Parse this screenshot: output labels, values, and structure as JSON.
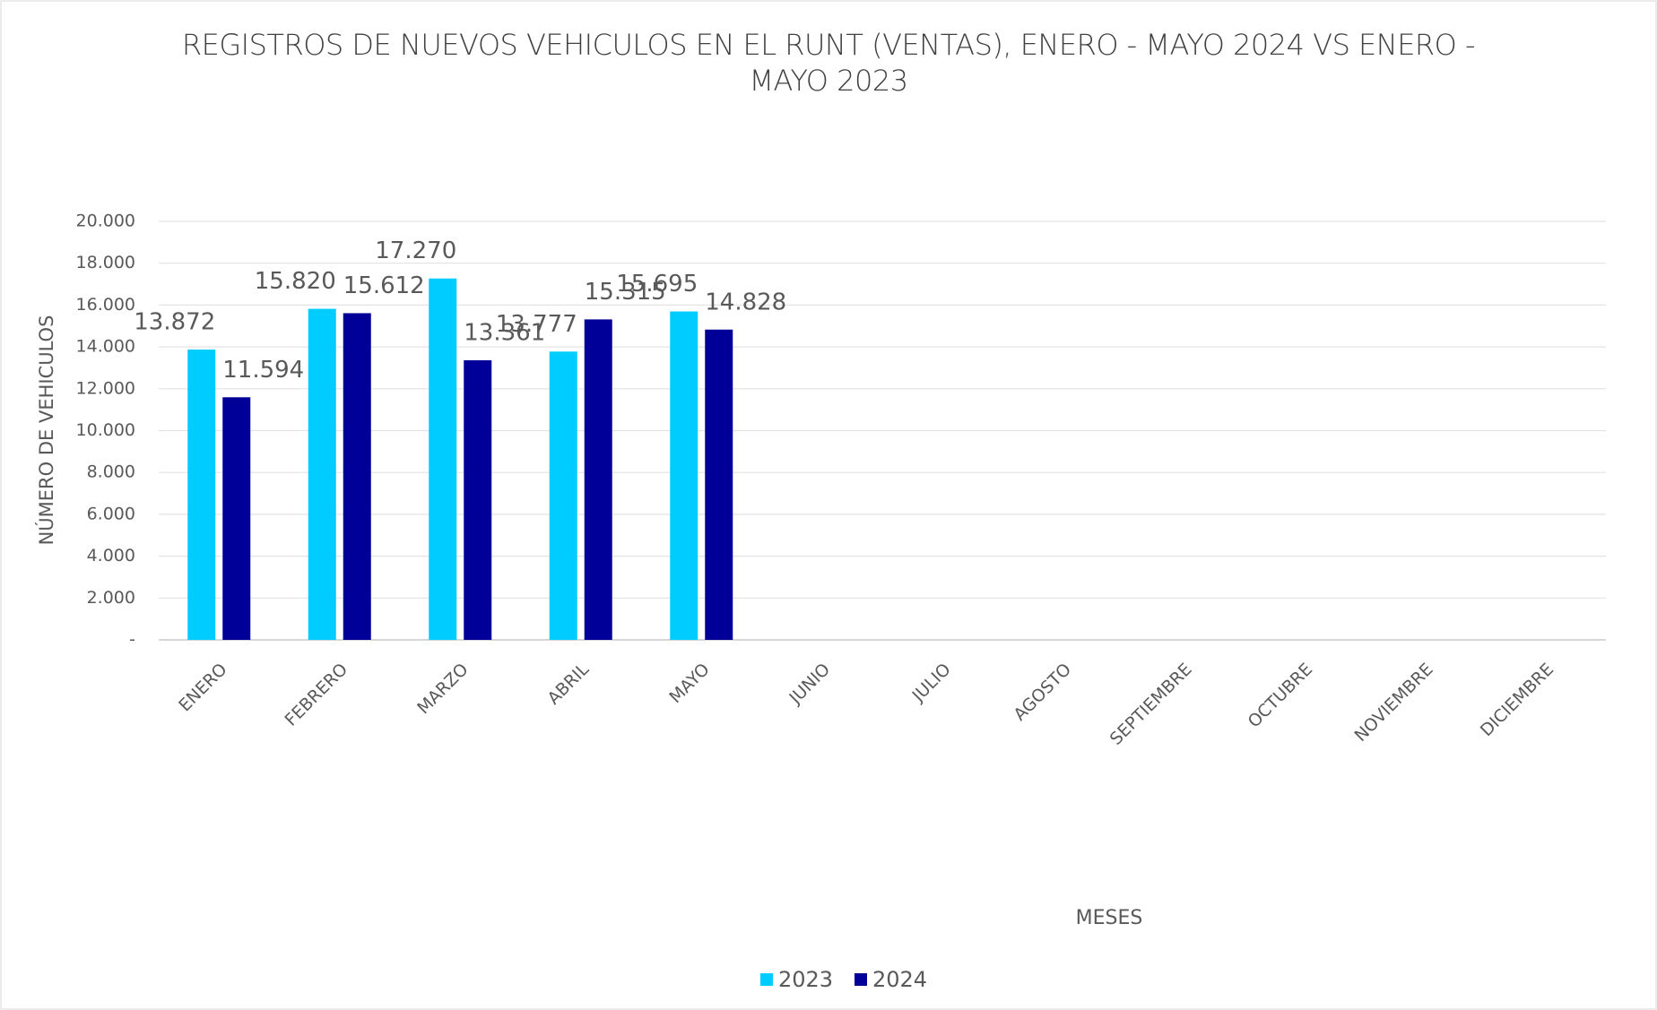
{
  "chart_data": {
    "type": "bar",
    "title": "REGISTROS DE NUEVOS VEHICULOS EN EL RUNT (VENTAS), ENERO - MAYO  2024 VS ENERO - MAYO 2023",
    "y_label": "NÚMERO DE VEHICULOS",
    "x_label": "MESES",
    "categories": [
      "ENERO",
      "FEBRERO",
      "MARZO",
      "ABRIL",
      "MAYO",
      "JUNIO",
      "JULIO",
      "AGOSTO",
      "SEPTIEMBRE",
      "OCTUBRE",
      "NOVIEMBRE",
      "DICIEMBRE"
    ],
    "series": [
      {
        "name": "2023",
        "color": "#00ccff",
        "values": [
          13872,
          15820,
          17270,
          13777,
          15695,
          null,
          null,
          null,
          null,
          null,
          null,
          null
        ],
        "value_labels": [
          "13.872",
          "15.820",
          "17.270",
          "13.777",
          "15.695",
          null,
          null,
          null,
          null,
          null,
          null,
          null
        ]
      },
      {
        "name": "2024",
        "color": "#000099",
        "values": [
          11594,
          15612,
          13361,
          15315,
          14828,
          null,
          null,
          null,
          null,
          null,
          null,
          null
        ],
        "value_labels": [
          "11.594",
          "15.612",
          "13.361",
          "15.315",
          "14.828",
          null,
          null,
          null,
          null,
          null,
          null,
          null
        ]
      }
    ],
    "ylim": [
      0,
      20000
    ],
    "yticks": [
      {
        "value": 0,
        "label": "-"
      },
      {
        "value": 2000,
        "label": "2.000"
      },
      {
        "value": 4000,
        "label": "4.000"
      },
      {
        "value": 6000,
        "label": "6.000"
      },
      {
        "value": 8000,
        "label": "8.000"
      },
      {
        "value": 10000,
        "label": "10.000"
      },
      {
        "value": 12000,
        "label": "12.000"
      },
      {
        "value": 14000,
        "label": "14.000"
      },
      {
        "value": 16000,
        "label": "16.000"
      },
      {
        "value": 18000,
        "label": "18.000"
      },
      {
        "value": 20000,
        "label": "20.000"
      }
    ],
    "grid": true,
    "legend": "bottom"
  }
}
